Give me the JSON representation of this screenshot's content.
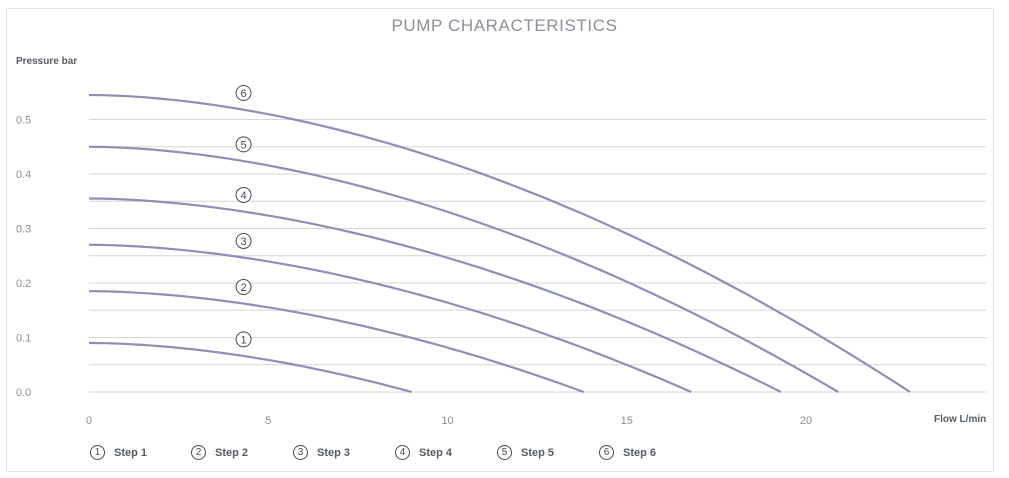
{
  "chart_data": {
    "type": "line",
    "title": "PUMP CHARACTERISTICS",
    "xlabel": "Flow L/min",
    "ylabel": "Pressure bar",
    "xlim": [
      0,
      25
    ],
    "ylim": [
      0,
      0.55
    ],
    "x_ticks": [
      "0",
      "5",
      "10",
      "15",
      "20"
    ],
    "y_ticks": [
      "0.0",
      "0.1",
      "0.2",
      "0.3",
      "0.4",
      "0.5"
    ],
    "grid": "horizontal",
    "legend_position": "bottom-left",
    "line_color": "#8e8fb8",
    "series": [
      {
        "name": "Step 1",
        "marker": "1",
        "shut_off_pressure": 0.09,
        "max_flow": 9.0,
        "label_x": 4.2
      },
      {
        "name": "Step 2",
        "marker": "2",
        "shut_off_pressure": 0.185,
        "max_flow": 13.8,
        "label_x": 4.2
      },
      {
        "name": "Step 3",
        "marker": "3",
        "shut_off_pressure": 0.27,
        "max_flow": 16.8,
        "label_x": 4.2
      },
      {
        "name": "Step 4",
        "marker": "4",
        "shut_off_pressure": 0.355,
        "max_flow": 19.3,
        "label_x": 4.2
      },
      {
        "name": "Step 5",
        "marker": "5",
        "shut_off_pressure": 0.45,
        "max_flow": 20.9,
        "label_x": 4.2
      },
      {
        "name": "Step 6",
        "marker": "6",
        "shut_off_pressure": 0.545,
        "max_flow": 22.9,
        "label_x": 4.2
      }
    ]
  },
  "legend": [
    {
      "marker": "1",
      "label": "Step 1"
    },
    {
      "marker": "2",
      "label": "Step 2"
    },
    {
      "marker": "3",
      "label": "Step 3"
    },
    {
      "marker": "4",
      "label": "Step 4"
    },
    {
      "marker": "5",
      "label": "Step 5"
    },
    {
      "marker": "6",
      "label": "Step 6"
    }
  ]
}
